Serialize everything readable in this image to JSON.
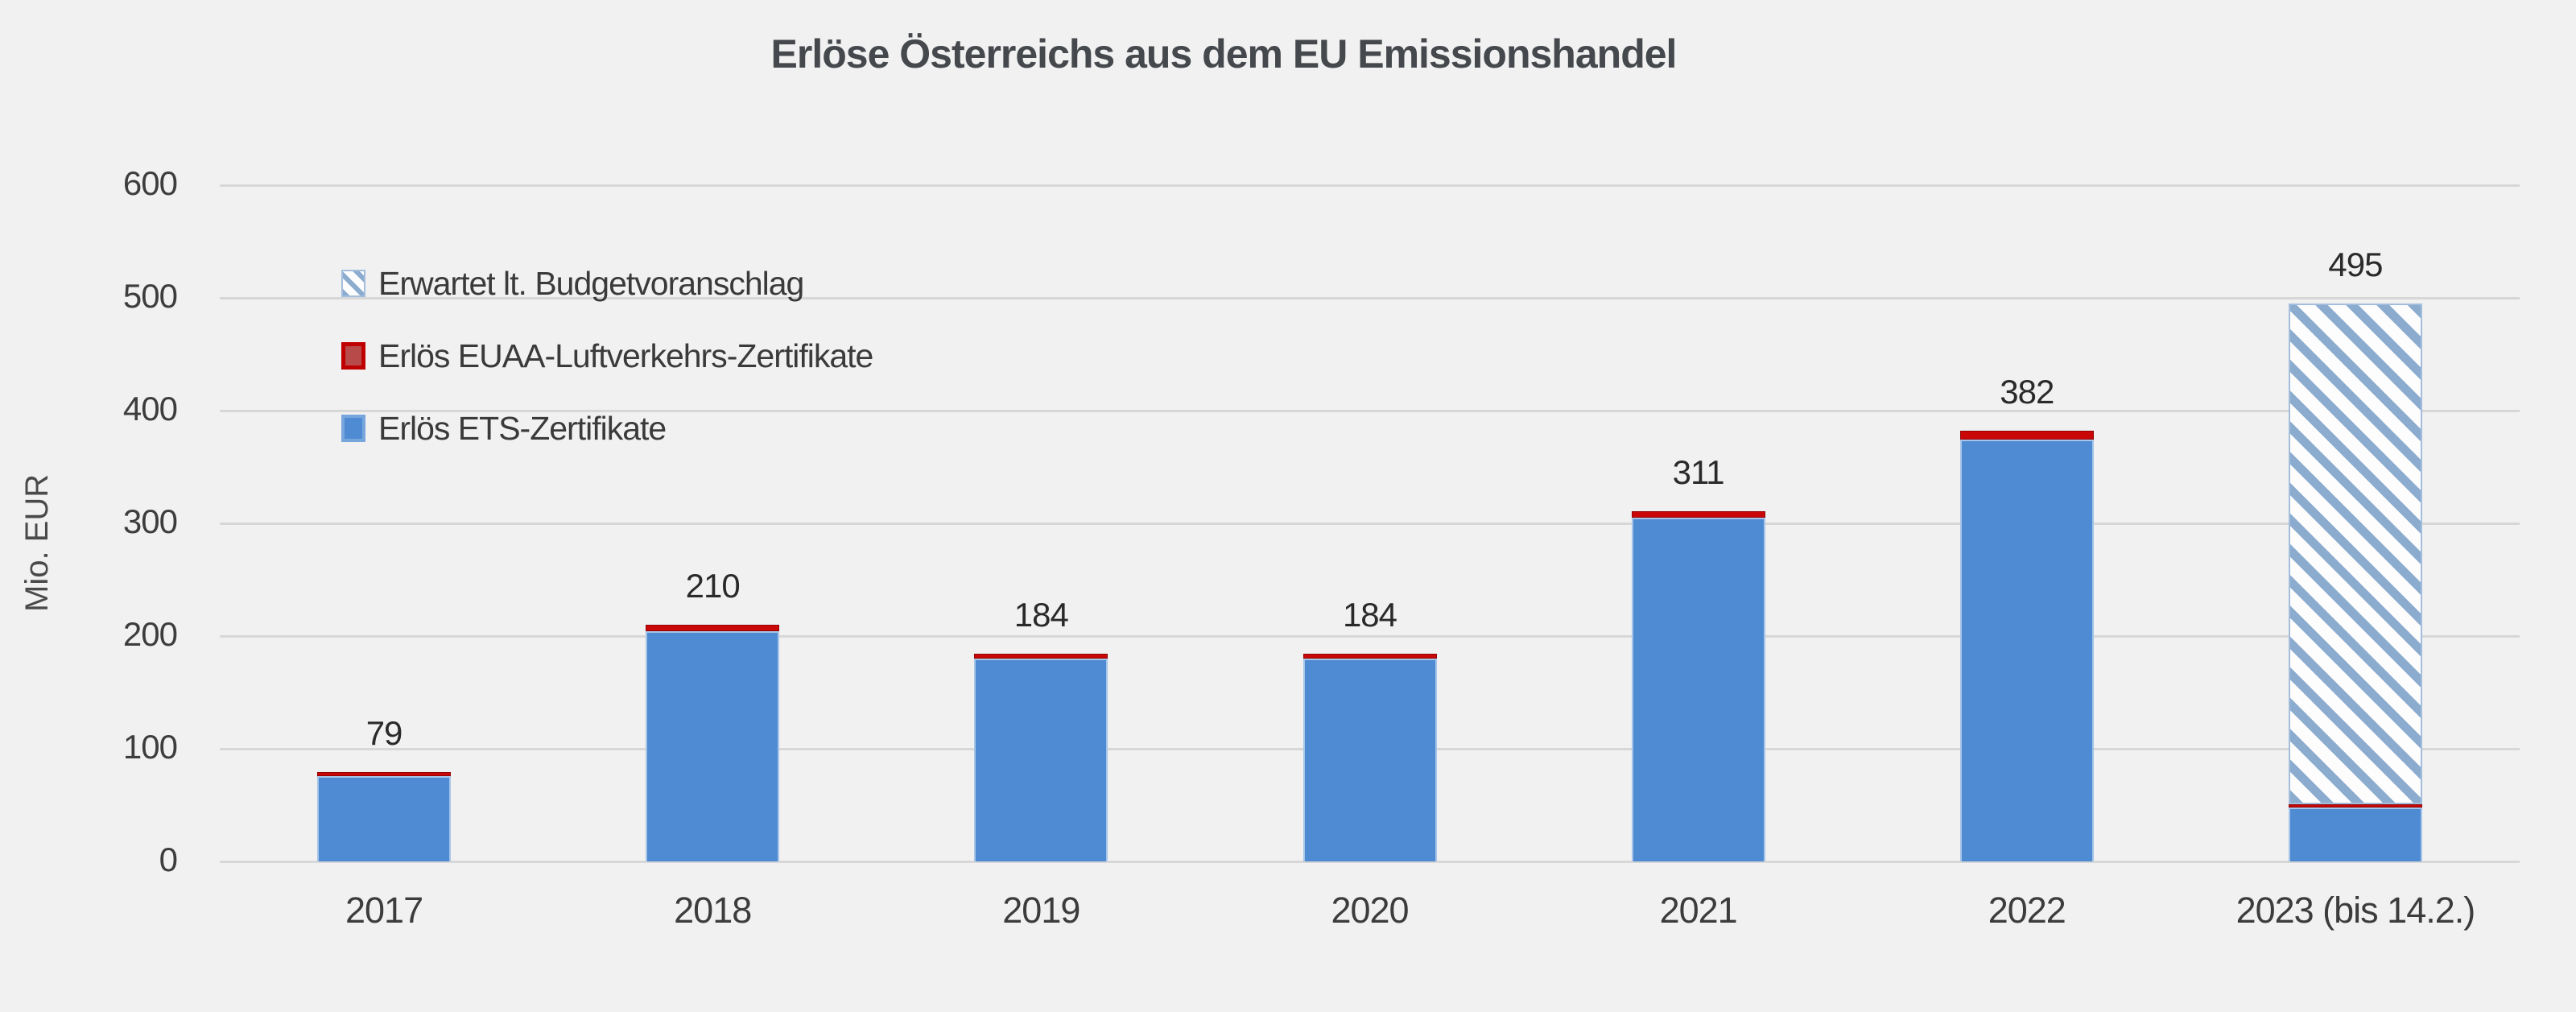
{
  "title": "Erlöse Österreichs aus dem EU Emissionshandel",
  "chart_data": {
    "type": "bar",
    "stacked": true,
    "title": "Erlöse Österreichs aus dem EU Emissionshandel",
    "ylabel": "Mio. EUR",
    "xlabel": "",
    "ylim": [
      0,
      600
    ],
    "ytick_step": 100,
    "yticks": [
      "0",
      "100",
      "200",
      "300",
      "400",
      "500",
      "600"
    ],
    "grid": true,
    "legend_position": "inside-top-left",
    "categories": [
      "2017",
      "2018",
      "2019",
      "2020",
      "2021",
      "2022",
      "2023 (bis 14.2.)"
    ],
    "series": [
      {
        "name": "Erlös ETS-Zertifikate",
        "style": "solid-blue",
        "values": [
          76,
          204,
          180,
          180,
          305,
          374,
          48
        ]
      },
      {
        "name": "Erlös EUAA-Luftverkehrs-Zertifikate",
        "style": "solid-red",
        "values": [
          3,
          6,
          4,
          4,
          6,
          8,
          3
        ]
      },
      {
        "name": "Erwartet lt. Budgetvoranschlag",
        "style": "hatched-blue",
        "values": [
          0,
          0,
          0,
          0,
          0,
          0,
          444
        ]
      }
    ],
    "totals": [
      79,
      210,
      184,
      184,
      311,
      382,
      495
    ],
    "total_labels": [
      "79",
      "210",
      "184",
      "184",
      "311",
      "382",
      "495"
    ],
    "legend": [
      {
        "label": "Erwartet lt. Budgetvoranschlag",
        "swatch": "hatched-blue"
      },
      {
        "label": "Erlös EUAA-Luftverkehrs-Zertifikate",
        "swatch": "solid-red"
      },
      {
        "label": "Erlös ETS-Zertifikate",
        "swatch": "solid-blue"
      }
    ],
    "colors": {
      "background": "#f1f1f2",
      "bar_blue": "#4e8bd2",
      "bar_blue_border": "#a6c5e8",
      "bar_red": "#c90707",
      "hatch_blue": "#8caccf",
      "hatch_background": "#fdfdfd",
      "gridline": "#d7d7d8",
      "text_dark": "#3c3c3c",
      "title_text": "#45484c"
    }
  }
}
